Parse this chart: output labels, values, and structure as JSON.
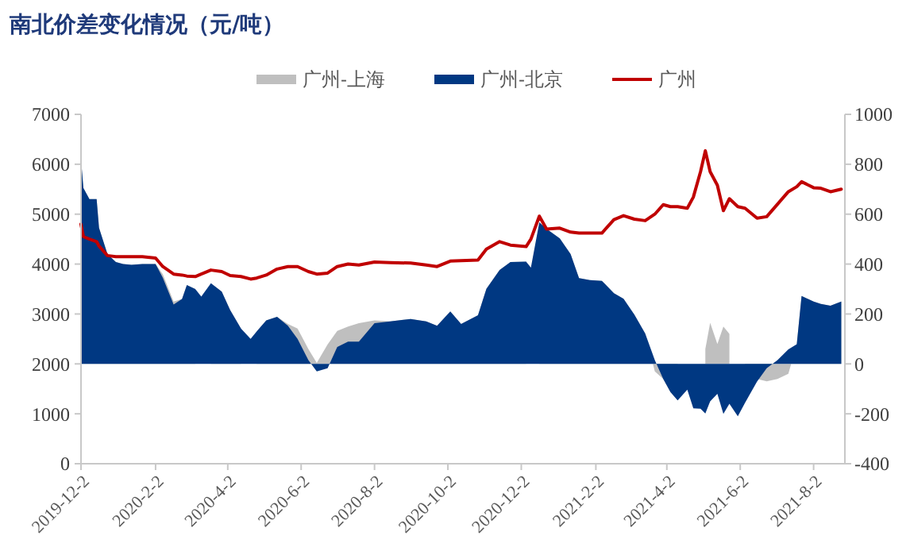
{
  "chart_data": {
    "type": "line",
    "title": "南北价差变化情况（元/吨）",
    "x": [
      "2019-12-02",
      "2019-12-04",
      "2019-12-09",
      "2019-12-15",
      "2019-12-17",
      "2019-12-24",
      "2019-12-31",
      "2020-01-06",
      "2020-01-13",
      "2020-01-22",
      "2020-02-02",
      "2020-02-08",
      "2020-02-17",
      "2020-02-24",
      "2020-02-28",
      "2020-03-06",
      "2020-03-11",
      "2020-03-19",
      "2020-03-28",
      "2020-04-04",
      "2020-04-13",
      "2020-04-21",
      "2020-04-26",
      "2020-05-04",
      "2020-05-13",
      "2020-05-22",
      "2020-05-30",
      "2020-06-08",
      "2020-06-15",
      "2020-06-24",
      "2020-07-02",
      "2020-07-11",
      "2020-07-20",
      "2020-08-02",
      "2020-08-15",
      "2020-09-01",
      "2020-09-14",
      "2020-09-23",
      "2020-10-04",
      "2020-10-13",
      "2020-10-27",
      "2020-11-03",
      "2020-11-14",
      "2020-11-23",
      "2020-12-06",
      "2020-12-10",
      "2020-12-17",
      "2020-12-23",
      "2021-01-03",
      "2021-01-12",
      "2021-01-19",
      "2021-01-28",
      "2021-02-07",
      "2021-02-17",
      "2021-02-25",
      "2021-03-06",
      "2021-03-15",
      "2021-03-23",
      "2021-03-30",
      "2021-04-05",
      "2021-04-11",
      "2021-04-19",
      "2021-04-24",
      "2021-04-30",
      "2021-05-04",
      "2021-05-08",
      "2021-05-14",
      "2021-05-19",
      "2021-05-24",
      "2021-05-31",
      "2021-06-06",
      "2021-06-16",
      "2021-06-24",
      "2021-07-03",
      "2021-07-12",
      "2021-07-19",
      "2021-07-23",
      "2021-08-02",
      "2021-08-08",
      "2021-08-16",
      "2021-08-25"
    ],
    "series": [
      {
        "name": "广州-上海",
        "type": "area",
        "axis": "y2",
        "color": "#bfbfbf",
        "values": [
          820,
          705,
          660,
          660,
          545,
          440,
          408,
          400,
          397,
          400,
          400,
          360,
          250,
          260,
          316,
          300,
          null,
          323,
          290,
          216,
          142,
          null,
          130,
          174,
          189,
          160,
          142,
          60,
          4,
          78,
          132,
          150,
          163,
          174,
          170,
          180,
          170,
          153,
          210,
          160,
          195,
          301,
          376,
          408,
          410,
          null,
          567,
          541,
          503,
          440,
          344,
          336,
          333,
          283,
          261,
          197,
          122,
          -30,
          -60,
          -113,
          -146,
          null,
          null,
          null,
          60,
          165,
          80,
          150,
          120,
          null,
          -156,
          -60,
          -70,
          -60,
          -40,
          79,
          272,
          250,
          240,
          233,
          250
        ]
      },
      {
        "name": "广州-北京",
        "type": "area",
        "axis": "y2",
        "color": "#003882",
        "values": [
          820,
          705,
          660,
          660,
          545,
          440,
          408,
          400,
          397,
          400,
          400,
          345,
          238,
          260,
          316,
          300,
          270,
          323,
          290,
          216,
          142,
          100,
          130,
          174,
          189,
          153,
          100,
          15,
          -30,
          -17,
          68,
          89,
          89,
          163,
          170,
          180,
          170,
          153,
          210,
          160,
          195,
          301,
          376,
          408,
          410,
          386,
          567,
          541,
          503,
          440,
          344,
          336,
          333,
          283,
          261,
          197,
          122,
          15,
          -60,
          -113,
          -146,
          -103,
          -178,
          -180,
          -199,
          -150,
          -120,
          -200,
          -160,
          -210,
          -156,
          -71,
          -17,
          15,
          58,
          79,
          272,
          250,
          240,
          233,
          250
        ]
      },
      {
        "name": "广州",
        "color": "#c00000",
        "values": [
          4800,
          4550,
          4500,
          4450,
          4360,
          4170,
          4150,
          4150,
          4150,
          4150,
          4120,
          3950,
          3800,
          3780,
          3760,
          3750,
          3800,
          3880,
          3850,
          3770,
          3750,
          3700,
          3720,
          3780,
          3900,
          3950,
          3950,
          3850,
          3800,
          3820,
          3950,
          4000,
          3980,
          4040,
          4030,
          4020,
          3980,
          3950,
          4060,
          4070,
          4080,
          4300,
          4450,
          4380,
          4350,
          4500,
          4960,
          4700,
          4720,
          4640,
          4620,
          4620,
          4620,
          4890,
          4970,
          4900,
          4870,
          5000,
          5190,
          5150,
          5150,
          5120,
          5340,
          5850,
          6270,
          5850,
          5580,
          5070,
          5310,
          5150,
          5120,
          4920,
          4950,
          5200,
          5450,
          5550,
          5650,
          5530,
          5520,
          5450,
          5500
        ]
      }
    ],
    "xlim": [
      "2019-12-02",
      "2021-08-28"
    ],
    "xticks": [
      {
        "value": "2019-12-02",
        "label": "2019-12-2"
      },
      {
        "value": "2020-02-02",
        "label": "2020-2-2"
      },
      {
        "value": "2020-04-02",
        "label": "2020-4-2"
      },
      {
        "value": "2020-06-02",
        "label": "2020-6-2"
      },
      {
        "value": "2020-08-02",
        "label": "2020-8-2"
      },
      {
        "value": "2020-10-02",
        "label": "2020-10-2"
      },
      {
        "value": "2020-12-02",
        "label": "2020-12-2"
      },
      {
        "value": "2021-02-02",
        "label": "2021-2-2"
      },
      {
        "value": "2021-04-02",
        "label": "2021-4-2"
      },
      {
        "value": "2021-06-02",
        "label": "2021-6-2"
      },
      {
        "value": "2021-08-02",
        "label": "2021-8-2"
      }
    ],
    "ylim": [
      0,
      7000
    ],
    "yticks": [
      0,
      1000,
      2000,
      3000,
      4000,
      5000,
      6000,
      7000
    ],
    "y2lim": [
      -400,
      1000
    ],
    "y2ticks": [
      -400,
      -200,
      0,
      200,
      400,
      600,
      800,
      1000
    ],
    "legend": "top",
    "grid": false
  }
}
